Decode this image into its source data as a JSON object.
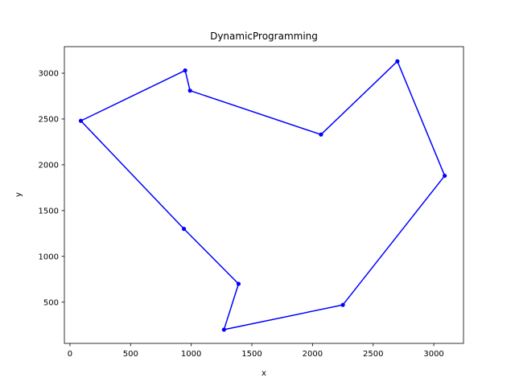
{
  "chart_data": {
    "type": "line",
    "title": "DynamicProgramming",
    "xlabel": "x",
    "ylabel": "y",
    "xlim": [
      -46,
      3245
    ],
    "ylim": [
      50,
      3290
    ],
    "xticks": [
      0,
      500,
      1000,
      1500,
      2000,
      2500,
      3000
    ],
    "yticks": [
      500,
      1000,
      1500,
      2000,
      2500,
      3000
    ],
    "grid": false,
    "legend": "none",
    "color": "#0000ff",
    "closed": true,
    "series": [
      {
        "x": [
          2700,
          3090,
          2250,
          1270,
          1390,
          940,
          90,
          950,
          990,
          2070
        ],
        "y": [
          3130,
          1880,
          470,
          200,
          700,
          1300,
          2480,
          3030,
          2810,
          2330
        ]
      }
    ]
  }
}
